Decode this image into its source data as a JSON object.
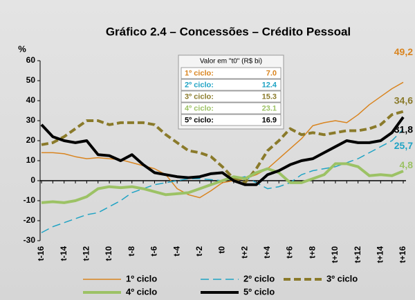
{
  "chart_data": {
    "type": "line",
    "title": "Gráfico 2.4 – Concessões – Crédito Pessoal",
    "y_label": "%",
    "categories": [
      "t-16",
      null,
      "t-14",
      null,
      "t-12",
      null,
      "t-10",
      null,
      "t-8",
      null,
      "t-6",
      null,
      "t-4",
      null,
      "t-2",
      null,
      "t0",
      null,
      "t+2",
      null,
      "t+4",
      null,
      "t+6",
      null,
      "t+8",
      null,
      "t+10",
      null,
      "t+12",
      null,
      "t+14",
      null,
      "t+16"
    ],
    "ylim": [
      -30,
      60
    ],
    "yticks": [
      -30,
      -20,
      -10,
      0,
      10,
      20,
      30,
      40,
      50,
      60
    ],
    "series": [
      {
        "name": "1º ciclo",
        "color": "#d9841f",
        "style": "solid",
        "width": 1.5,
        "values": [
          14,
          14,
          13.5,
          12,
          11,
          11.5,
          11,
          10.5,
          9,
          7.5,
          6,
          3,
          -4,
          -7,
          -8.5,
          -5,
          -1,
          0,
          1,
          3,
          6,
          11,
          16,
          21,
          27.5,
          29,
          30,
          29,
          33,
          38,
          42,
          46,
          49.2
        ],
        "value_labels": [
          null,
          null,
          null,
          null,
          null,
          null,
          null,
          null,
          null,
          null,
          null,
          null,
          null,
          null,
          null,
          null,
          null,
          null,
          null,
          null,
          null,
          null,
          null,
          null,
          null,
          null,
          null,
          null,
          null,
          null,
          null,
          null,
          "49,2"
        ]
      },
      {
        "name": "2º ciclo",
        "color": "#1fa3c4",
        "style": "dashed",
        "width": 1.5,
        "values": [
          -26,
          -23,
          -21,
          -19,
          -17,
          -16,
          -13,
          -10,
          -6,
          -4,
          -2,
          -1,
          0,
          1,
          1,
          0.5,
          0,
          1,
          2,
          -1,
          -4,
          -3,
          -1,
          3,
          5,
          6,
          7,
          9,
          11,
          14,
          17,
          20,
          25.7
        ],
        "value_labels": [
          null,
          null,
          null,
          null,
          null,
          null,
          null,
          null,
          null,
          null,
          null,
          null,
          null,
          null,
          null,
          null,
          null,
          null,
          null,
          null,
          null,
          null,
          null,
          null,
          null,
          null,
          null,
          null,
          null,
          null,
          null,
          null,
          "25,7"
        ]
      },
      {
        "name": "3º ciclo",
        "color": "#8a7a2a",
        "style": "dashed",
        "width": 4,
        "values": [
          18,
          19,
          22,
          26,
          30,
          30,
          28,
          29,
          29,
          29,
          28,
          23,
          19,
          15,
          14,
          12,
          7,
          1,
          -1,
          6,
          15,
          20,
          26,
          23,
          24,
          23,
          24,
          25,
          25,
          26,
          28,
          33,
          34.6
        ],
        "value_labels": [
          null,
          null,
          null,
          null,
          null,
          null,
          null,
          null,
          null,
          null,
          null,
          null,
          null,
          null,
          null,
          null,
          null,
          null,
          null,
          null,
          null,
          null,
          null,
          null,
          null,
          null,
          null,
          null,
          null,
          null,
          null,
          null,
          "34,6"
        ]
      },
      {
        "name": "4º ciclo",
        "color": "#9cc265",
        "style": "solid",
        "width": 4,
        "values": [
          -11,
          -10.5,
          -11,
          -10,
          -8,
          -4,
          -3,
          -3.5,
          -3,
          -4,
          -5.5,
          -7,
          -6.5,
          -6,
          -4,
          -2,
          0,
          2,
          1,
          4,
          6,
          4,
          -1,
          -1,
          1,
          3,
          8.5,
          8.5,
          7,
          2.5,
          3,
          2.5,
          4.8
        ],
        "value_labels": [
          null,
          null,
          null,
          null,
          null,
          null,
          null,
          null,
          null,
          null,
          null,
          null,
          null,
          null,
          null,
          null,
          null,
          null,
          null,
          null,
          null,
          null,
          null,
          null,
          null,
          null,
          null,
          null,
          null,
          null,
          null,
          null,
          "4,8"
        ]
      },
      {
        "name": "5º ciclo",
        "color": "#000000",
        "style": "solid",
        "width": 4,
        "values": [
          28,
          22,
          20,
          19,
          20,
          13,
          12.5,
          10,
          13,
          8,
          4,
          3,
          2,
          1.5,
          2,
          3.5,
          4,
          0,
          -2,
          -2,
          3,
          5,
          8,
          10,
          11,
          14,
          17,
          20,
          19,
          19,
          20,
          24,
          31.8
        ],
        "value_labels": [
          null,
          null,
          null,
          null,
          null,
          null,
          null,
          null,
          null,
          null,
          null,
          null,
          null,
          null,
          null,
          null,
          null,
          null,
          null,
          null,
          null,
          null,
          null,
          null,
          null,
          null,
          null,
          null,
          null,
          null,
          null,
          null,
          "31,8"
        ]
      }
    ],
    "table": {
      "title": "Valor em \"t0\" (R$ bi)",
      "rows": [
        [
          "1º ciclo:",
          "7.0"
        ],
        [
          "2º ciclo:",
          "12.4"
        ],
        [
          "3º ciclo:",
          "15.3"
        ],
        [
          "4º ciclo:",
          "23.1"
        ],
        [
          "5º ciclo:",
          "16.9"
        ]
      ]
    }
  }
}
